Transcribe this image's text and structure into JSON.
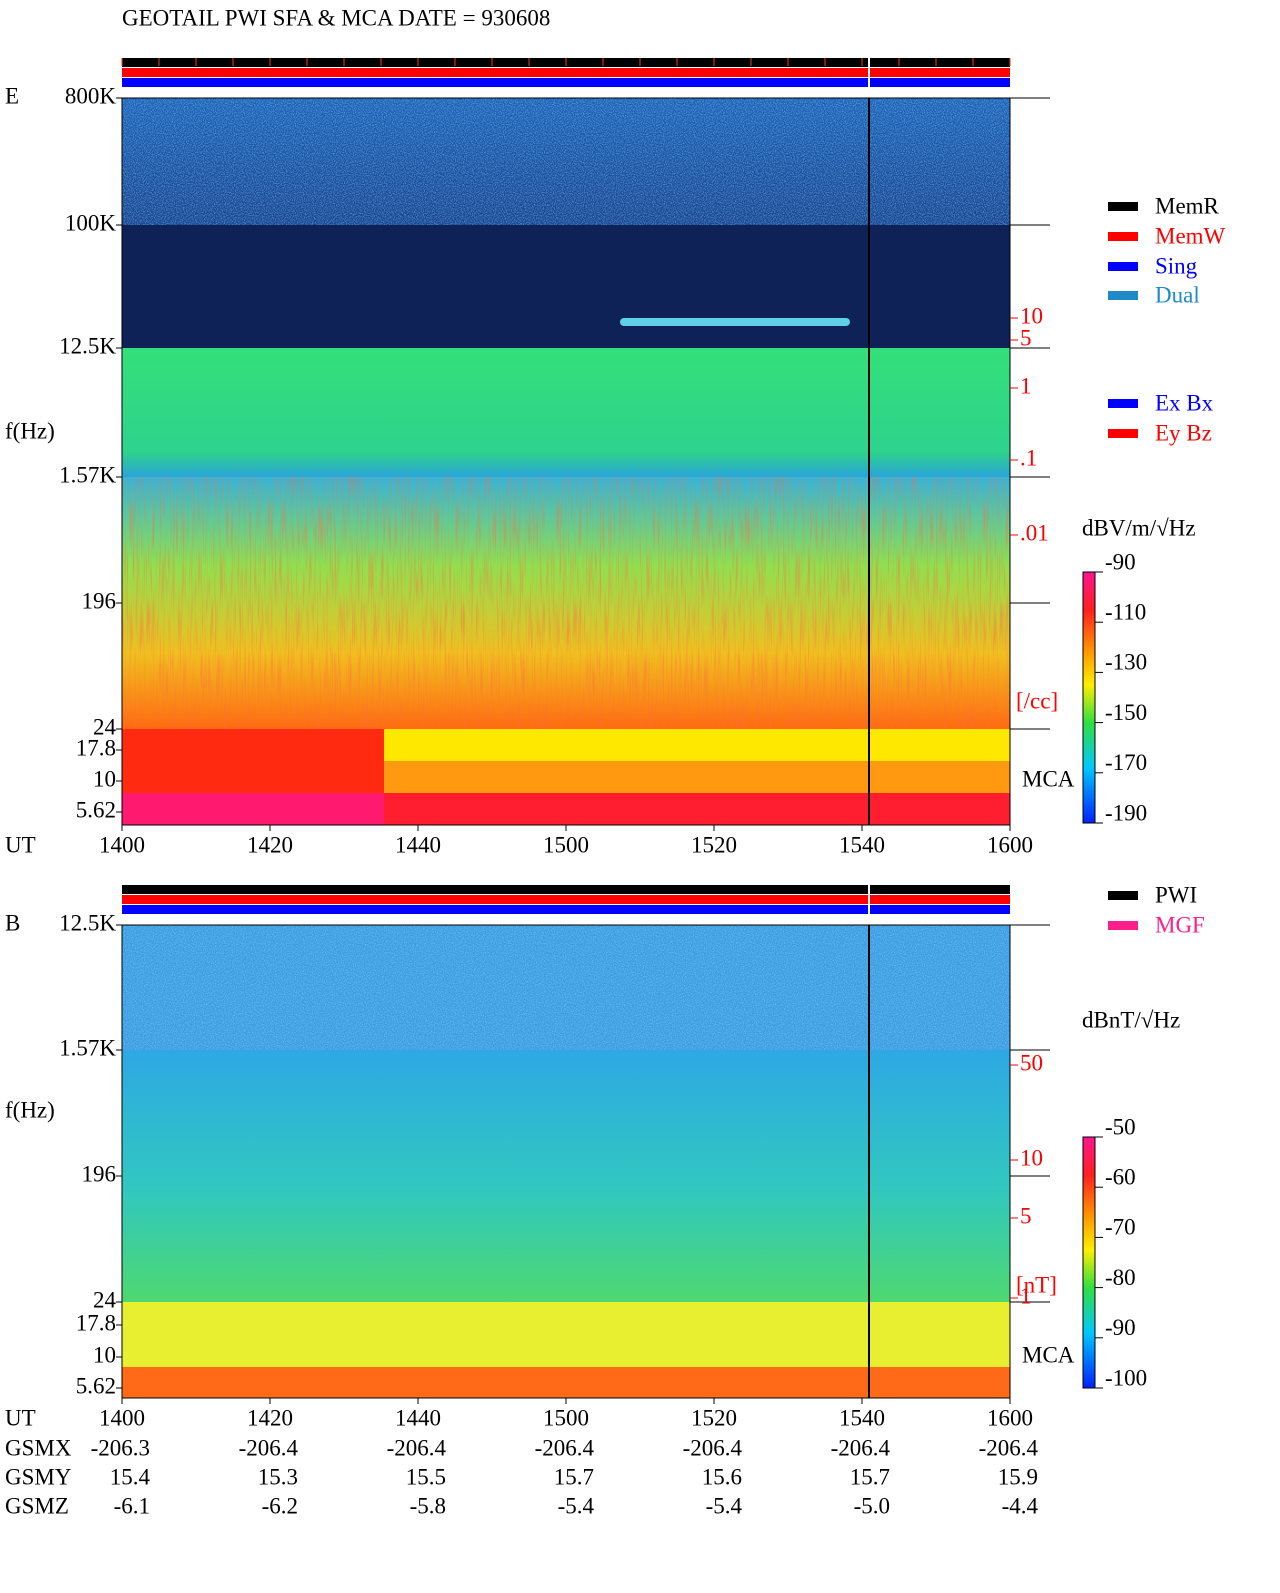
{
  "header": {
    "title": "GEOTAIL  PWI SFA & MCA   DATE = 930608"
  },
  "panels": [
    {
      "label": "E",
      "y_axis_label": "f(Hz)",
      "yticks": [
        "800K",
        "100K",
        "12.5K",
        "1.57K",
        "196",
        "24",
        "17.8",
        "10",
        "5.62"
      ],
      "x_axis_label": "UT",
      "xticks": [
        "1400",
        "1420",
        "1440",
        "1500",
        "1520",
        "1540",
        "1600"
      ],
      "right_ticks": [
        "10",
        "5",
        "1",
        ".1",
        ".01"
      ],
      "right_unit": "[/cc]",
      "mca_label": "MCA",
      "legend": [
        {
          "name": "MemR",
          "color": "#000000"
        },
        {
          "name": "MemW",
          "color": "#ff0000"
        },
        {
          "name": "Sing",
          "color": "#0000ff"
        },
        {
          "name": "Dual",
          "color": "#1e8ac8"
        },
        {
          "name": "Ex Bx",
          "color": "#0000ff"
        },
        {
          "name": "Ey Bz",
          "color": "#ff0000"
        }
      ],
      "colorbar": {
        "unit": "dBV/m/√Hz",
        "ticks": [
          -90,
          -110,
          -130,
          -150,
          -170,
          -190
        ]
      }
    },
    {
      "label": "B",
      "y_axis_label": "f(Hz)",
      "yticks": [
        "12.5K",
        "1.57K",
        "196",
        "24",
        "17.8",
        "10",
        "5.62"
      ],
      "x_axis_label": "UT",
      "xticks": [
        "1400",
        "1420",
        "1440",
        "1500",
        "1520",
        "1540",
        "1600"
      ],
      "right_ticks": [
        "50",
        "10",
        "5",
        "1"
      ],
      "right_unit": "[nT]",
      "mca_label": "MCA",
      "legend": [
        {
          "name": "PWI",
          "color": "#000000"
        },
        {
          "name": "MGF",
          "color": "#ff1f8c"
        }
      ],
      "colorbar": {
        "unit": "dBnT/√Hz",
        "ticks": [
          -50,
          -60,
          -70,
          -80,
          -90,
          -100
        ]
      }
    }
  ],
  "orbit": {
    "rows": [
      {
        "label": "GSMX",
        "values": [
          "-206.3",
          "-206.4",
          "-206.4",
          "-206.4",
          "-206.4",
          "-206.4",
          "-206.4"
        ]
      },
      {
        "label": "GSMY",
        "values": [
          "15.4",
          "15.3",
          "15.5",
          "15.7",
          "15.6",
          "15.7",
          "15.9"
        ]
      },
      {
        "label": "GSMZ",
        "values": [
          "-6.1",
          "-6.2",
          "-5.8",
          "-5.4",
          "-5.4",
          "-5.0",
          "-4.4"
        ]
      }
    ]
  }
}
